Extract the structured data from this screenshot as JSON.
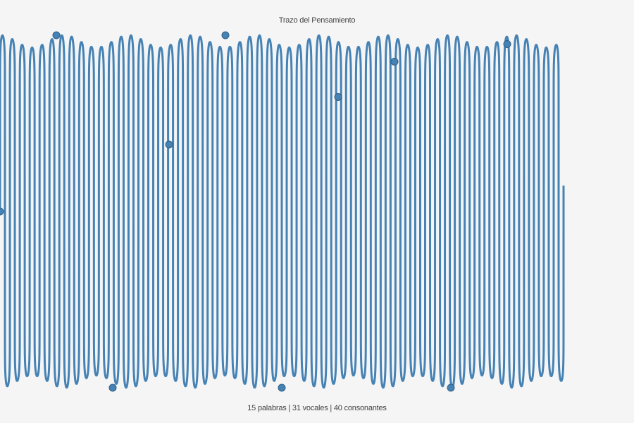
{
  "header": {
    "title": "Trazo del Pensamiento"
  },
  "footer": {
    "stats_text": "15 palabras | 31 vocales | 40 consonantes"
  },
  "colors": {
    "background": "#f5f5f5",
    "stroke": "#4682b4",
    "marker_fill": "#4682b4",
    "marker_stroke": "#2f5f86",
    "text": "#444444"
  },
  "chart_data": {
    "type": "line",
    "title": "Trazo del Pensamiento",
    "xlim": [
      0,
      800
    ],
    "ylim": [
      -1,
      1
    ],
    "grid": false,
    "legend": "none",
    "trace": {
      "cycles": 57,
      "envelope_modulation": 0.035
    },
    "markers": {
      "x": [
        0,
        80,
        160,
        240,
        320,
        400,
        480,
        560,
        640,
        720
      ],
      "y": [
        0,
        1,
        -1,
        0.38,
        1,
        -1,
        0.65,
        0.85,
        -1,
        0.95
      ]
    }
  }
}
